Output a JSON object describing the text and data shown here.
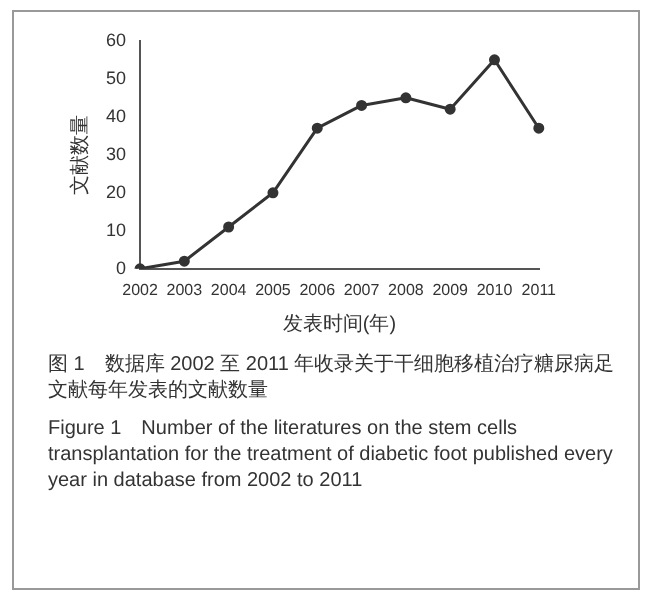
{
  "chart_data": {
    "type": "line",
    "xlabel": "发表时间(年)",
    "ylabel": "文献数量",
    "categories": [
      "2002",
      "2003",
      "2004",
      "2005",
      "2006",
      "2007",
      "2008",
      "2009",
      "2010",
      "2011"
    ],
    "series": [
      {
        "color": "#333333",
        "values": [
          0,
          2,
          11,
          20,
          37,
          43,
          45,
          42,
          55,
          37
        ]
      }
    ],
    "ylim": [
      0,
      60
    ],
    "yticks": [
      0,
      10,
      20,
      30,
      40,
      50,
      60
    ],
    "grid": false,
    "legend": false,
    "marker": "circle",
    "line_style": "solid",
    "annotations": [
      "图 1　数据库 2002 至 2011 年收录关于干细胞移植治疗糖尿病足文献每年发表的文献数量",
      "Figure 1　Number of the literatures on the stem cells transplantation for the treatment of diabetic foot published every year in database from 2002 to 2011"
    ]
  }
}
